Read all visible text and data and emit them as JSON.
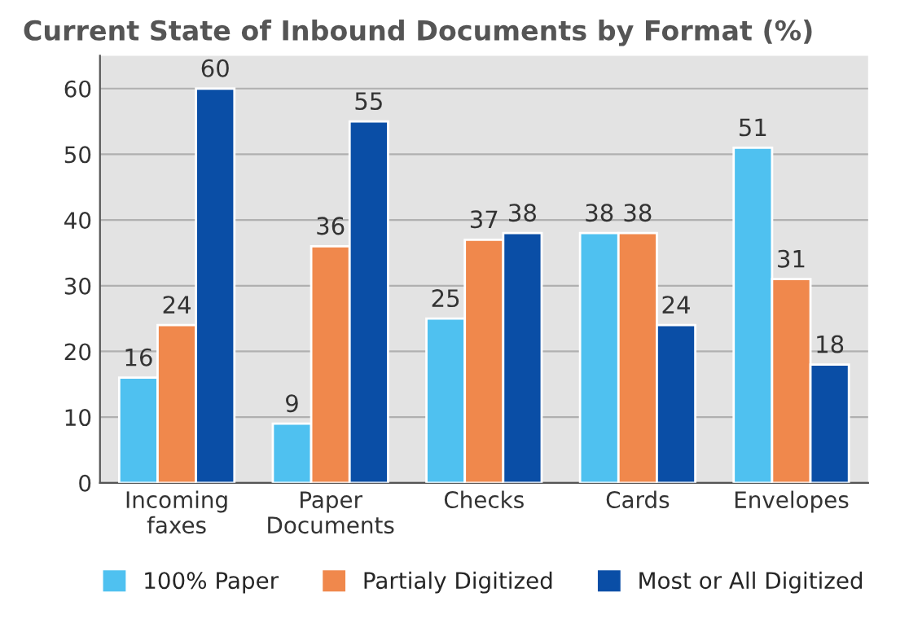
{
  "chart_data": {
    "type": "bar",
    "title": "Current State of Inbound Documents by Format (%)",
    "categories": [
      "Incoming\nfaxes",
      "Paper\nDocuments",
      "Checks",
      "Cards",
      "Envelopes"
    ],
    "series": [
      {
        "name": "100% Paper",
        "color": "#4fc1f0",
        "values": [
          16,
          9,
          25,
          38,
          51
        ]
      },
      {
        "name": "Partialy Digitized",
        "color": "#f0884c",
        "values": [
          24,
          36,
          37,
          38,
          31
        ]
      },
      {
        "name": "Most or All Digitized",
        "color": "#0a4ea6",
        "values": [
          60,
          55,
          38,
          24,
          18
        ]
      }
    ],
    "ylim": [
      0,
      65
    ],
    "yticks": [
      0,
      10,
      20,
      30,
      40,
      50,
      60
    ],
    "grid": "y",
    "legend": "bottom",
    "data_labels": true
  }
}
